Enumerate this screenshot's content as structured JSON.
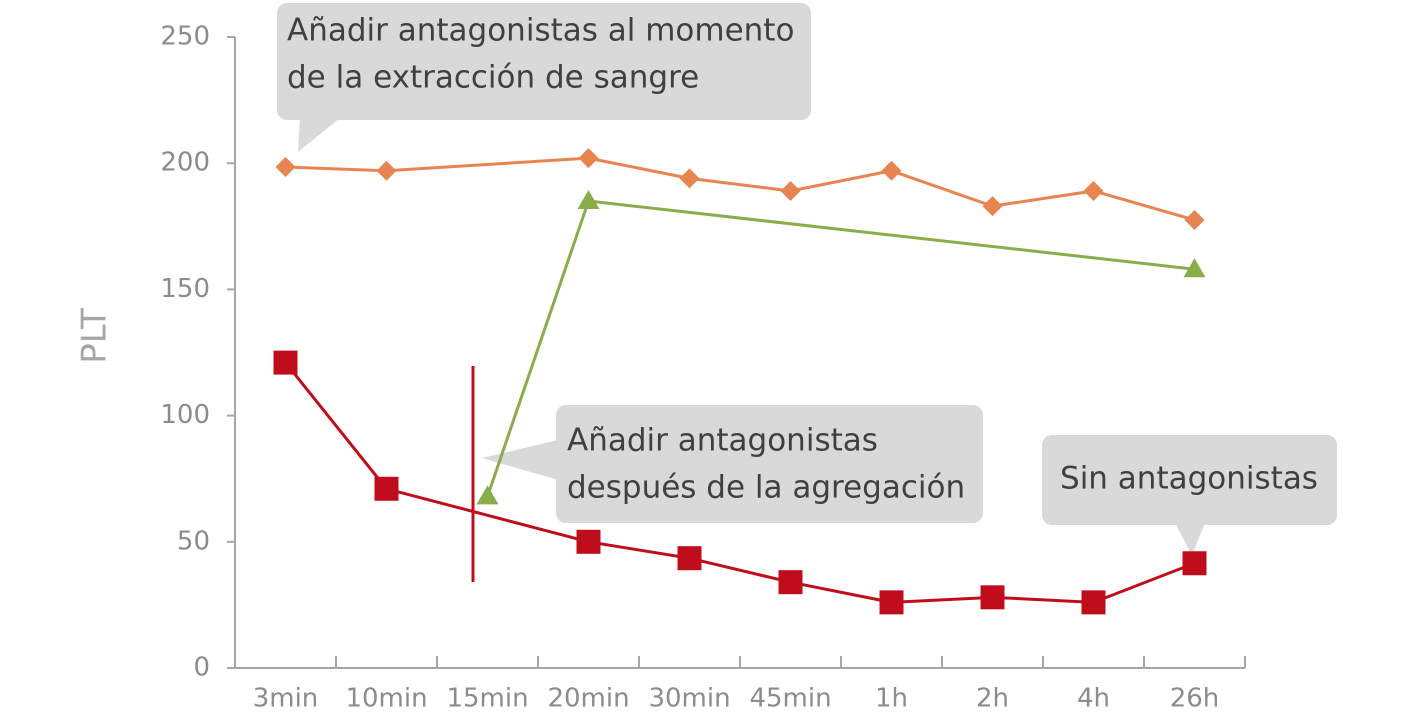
{
  "chart_data": {
    "type": "line",
    "y_label": "PLT",
    "categories": [
      "3min",
      "10min",
      "15min",
      "20min",
      "30min",
      "45min",
      "1h",
      "2h",
      "4h",
      "26h"
    ],
    "series": [
      {
        "color": "#e8844f",
        "marker": "diamond",
        "values": [
          198.5,
          197,
          null,
          202,
          194,
          189,
          197,
          183,
          189,
          177.5
        ]
      },
      {
        "color": "#8aad4c",
        "marker": "triangle",
        "values": [
          null,
          null,
          68,
          185,
          null,
          null,
          null,
          null,
          null,
          158
        ]
      },
      {
        "color": "#c00d1b",
        "marker": "square",
        "values": [
          121,
          71,
          null,
          50,
          43.5,
          34,
          26,
          28,
          26,
          41.5
        ]
      }
    ],
    "connect_gaps": true,
    "ylim": [
      0,
      250
    ],
    "yticks": [
      0,
      50,
      100,
      150,
      200,
      250
    ],
    "grid": false,
    "annotations": [
      {
        "lines": [
          "Añadir antagonistas al momento",
          "de la extracción de sangre"
        ]
      },
      {
        "lines": [
          "Añadir antagonistas",
          "después de la agregación"
        ]
      },
      {
        "lines": [
          "Sin antagonistas"
        ]
      }
    ]
  }
}
